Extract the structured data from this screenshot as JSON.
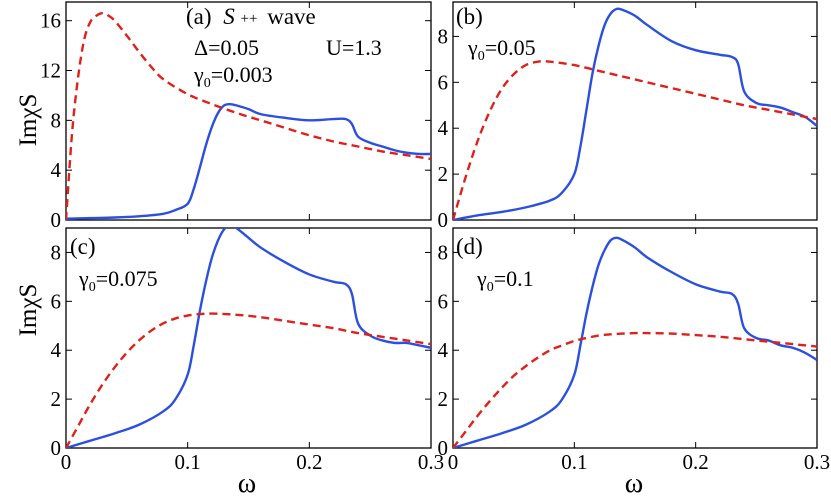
{
  "figure": {
    "ylabel": "ImχS",
    "xlabel": "ω",
    "colors": {
      "blue": "#2b4fe0",
      "red": "#e0201b"
    }
  },
  "chart_data": [
    {
      "type": "line",
      "panel": "a",
      "panel_label": "(a)",
      "wave_symbol": "S",
      "wave_superscript": "++",
      "wave_word": "wave",
      "params": [
        {
          "id": "delta",
          "text": "Δ=0.05"
        },
        {
          "id": "u",
          "text": "U=1.3"
        },
        {
          "id": "gamma",
          "text": "γ0=0.003",
          "symbol": "γ",
          "sub": "0",
          "value": "=0.003"
        }
      ],
      "xlim": [
        0,
        0.3
      ],
      "ylim": [
        0,
        17.5
      ],
      "xticks": [
        0,
        0.1,
        0.2,
        0.3
      ],
      "xtick_labels": [
        "0",
        "0.1",
        "0.2",
        "0.3"
      ],
      "yticks": [
        0,
        4,
        8,
        12,
        16
      ],
      "series": [
        {
          "name": "blue",
          "style": "solid",
          "color": "#2b4fe0",
          "x": [
            0,
            0.02,
            0.04,
            0.06,
            0.08,
            0.09,
            0.1,
            0.105,
            0.11,
            0.115,
            0.12,
            0.125,
            0.13,
            0.135,
            0.14,
            0.15,
            0.16,
            0.18,
            0.2,
            0.22,
            0.23,
            0.235,
            0.24,
            0.25,
            0.26,
            0.27,
            0.28,
            0.29,
            0.3
          ],
          "y": [
            0.1,
            0.15,
            0.2,
            0.3,
            0.5,
            0.8,
            1.3,
            2.5,
            4.2,
            6.0,
            7.5,
            8.6,
            9.2,
            9.3,
            9.2,
            8.9,
            8.5,
            8.2,
            8.0,
            8.1,
            8.1,
            7.7,
            6.7,
            6.2,
            5.9,
            5.6,
            5.4,
            5.3,
            5.3
          ]
        },
        {
          "name": "red",
          "style": "dashed",
          "color": "#e0201b",
          "x": [
            0,
            0.005,
            0.01,
            0.015,
            0.02,
            0.025,
            0.03,
            0.035,
            0.04,
            0.05,
            0.06,
            0.07,
            0.08,
            0.1,
            0.12,
            0.14,
            0.16,
            0.18,
            0.2,
            0.22,
            0.24,
            0.26,
            0.28,
            0.3
          ],
          "y": [
            0,
            7.0,
            11.5,
            14.5,
            15.9,
            16.4,
            16.6,
            16.4,
            16.0,
            14.8,
            13.5,
            12.3,
            11.3,
            10.1,
            9.3,
            8.6,
            8.0,
            7.4,
            6.8,
            6.3,
            5.9,
            5.5,
            5.2,
            4.9
          ]
        }
      ]
    },
    {
      "type": "line",
      "panel": "b",
      "panel_label": "(b)",
      "params": [
        {
          "id": "gamma",
          "text": "γ0=0.05",
          "symbol": "γ",
          "sub": "0",
          "value": "=0.05"
        }
      ],
      "xlim": [
        0,
        0.3
      ],
      "ylim": [
        0,
        9.5
      ],
      "xticks": [
        0,
        0.1,
        0.2,
        0.3
      ],
      "xtick_labels": [
        "0",
        "0.1",
        "0.2",
        "0.3"
      ],
      "yticks": [
        0,
        2,
        4,
        6,
        8
      ],
      "series": [
        {
          "name": "blue",
          "style": "solid",
          "color": "#2b4fe0",
          "x": [
            0,
            0.02,
            0.04,
            0.06,
            0.08,
            0.09,
            0.1,
            0.105,
            0.11,
            0.115,
            0.12,
            0.125,
            0.13,
            0.135,
            0.14,
            0.15,
            0.16,
            0.18,
            0.2,
            0.22,
            0.23,
            0.235,
            0.24,
            0.25,
            0.26,
            0.27,
            0.28,
            0.29,
            0.3
          ],
          "y": [
            0,
            0.2,
            0.35,
            0.55,
            0.85,
            1.2,
            2.0,
            3.2,
            4.8,
            6.4,
            7.6,
            8.5,
            9.0,
            9.2,
            9.15,
            8.9,
            8.5,
            7.8,
            7.4,
            7.2,
            7.1,
            6.8,
            5.6,
            5.1,
            5.0,
            4.9,
            4.7,
            4.5,
            4.1
          ]
        },
        {
          "name": "red",
          "style": "dashed",
          "color": "#e0201b",
          "x": [
            0,
            0.01,
            0.02,
            0.03,
            0.04,
            0.05,
            0.06,
            0.07,
            0.08,
            0.1,
            0.12,
            0.14,
            0.16,
            0.18,
            0.2,
            0.22,
            0.24,
            0.26,
            0.28,
            0.3
          ],
          "y": [
            0,
            1.8,
            3.4,
            4.7,
            5.7,
            6.35,
            6.75,
            6.9,
            6.9,
            6.75,
            6.5,
            6.25,
            6.0,
            5.75,
            5.5,
            5.25,
            5.0,
            4.8,
            4.6,
            4.4
          ]
        }
      ]
    },
    {
      "type": "line",
      "panel": "c",
      "panel_label": "(c)",
      "params": [
        {
          "id": "gamma",
          "text": "γ0=0.075",
          "symbol": "γ",
          "sub": "0",
          "value": "=0.075"
        }
      ],
      "xlim": [
        0,
        0.3
      ],
      "ylim": [
        0,
        9.0
      ],
      "xticks": [
        0,
        0.1,
        0.2,
        0.3
      ],
      "xtick_labels": [
        "0",
        "0.1",
        "0.2",
        "0.3"
      ],
      "yticks": [
        0,
        2,
        4,
        6,
        8
      ],
      "series": [
        {
          "name": "blue",
          "style": "solid",
          "color": "#2b4fe0",
          "x": [
            0,
            0.02,
            0.04,
            0.06,
            0.08,
            0.09,
            0.1,
            0.105,
            0.11,
            0.115,
            0.12,
            0.125,
            0.13,
            0.135,
            0.14,
            0.15,
            0.16,
            0.18,
            0.2,
            0.22,
            0.23,
            0.235,
            0.24,
            0.25,
            0.26,
            0.27,
            0.28,
            0.29,
            0.3
          ],
          "y": [
            0,
            0.3,
            0.6,
            0.95,
            1.5,
            2.0,
            3.0,
            4.2,
            5.6,
            6.8,
            7.8,
            8.5,
            8.95,
            9.1,
            9.0,
            8.6,
            8.2,
            7.6,
            7.1,
            6.8,
            6.7,
            6.3,
            5.1,
            4.6,
            4.4,
            4.3,
            4.3,
            4.2,
            4.1
          ]
        },
        {
          "name": "red",
          "style": "dashed",
          "color": "#e0201b",
          "x": [
            0,
            0.01,
            0.02,
            0.03,
            0.04,
            0.05,
            0.06,
            0.07,
            0.08,
            0.09,
            0.1,
            0.11,
            0.12,
            0.14,
            0.16,
            0.18,
            0.2,
            0.22,
            0.24,
            0.26,
            0.28,
            0.3
          ],
          "y": [
            0,
            0.9,
            1.8,
            2.6,
            3.3,
            3.9,
            4.4,
            4.8,
            5.1,
            5.3,
            5.42,
            5.48,
            5.5,
            5.45,
            5.35,
            5.2,
            5.05,
            4.9,
            4.7,
            4.55,
            4.4,
            4.25
          ]
        }
      ]
    },
    {
      "type": "line",
      "panel": "d",
      "panel_label": "(d)",
      "params": [
        {
          "id": "gamma",
          "text": "γ0=0.1",
          "symbol": "γ",
          "sub": "0",
          "value": "=0.1"
        }
      ],
      "xlim": [
        0,
        0.3
      ],
      "ylim": [
        0,
        9.0
      ],
      "xticks": [
        0,
        0.1,
        0.2,
        0.3
      ],
      "xtick_labels": [
        "0",
        "0.1",
        "0.2",
        "0.3"
      ],
      "yticks": [
        0,
        2,
        4,
        6,
        8
      ],
      "series": [
        {
          "name": "blue",
          "style": "solid",
          "color": "#2b4fe0",
          "x": [
            0,
            0.02,
            0.04,
            0.06,
            0.08,
            0.09,
            0.1,
            0.105,
            0.11,
            0.115,
            0.12,
            0.125,
            0.13,
            0.135,
            0.14,
            0.15,
            0.16,
            0.18,
            0.2,
            0.22,
            0.23,
            0.235,
            0.24,
            0.25,
            0.26,
            0.27,
            0.28,
            0.29,
            0.3
          ],
          "y": [
            0,
            0.3,
            0.6,
            0.95,
            1.5,
            2.0,
            3.0,
            4.2,
            5.5,
            6.6,
            7.5,
            8.1,
            8.5,
            8.6,
            8.5,
            8.2,
            7.8,
            7.2,
            6.7,
            6.4,
            6.3,
            5.9,
            4.9,
            4.5,
            4.4,
            4.2,
            4.1,
            3.9,
            3.6
          ]
        },
        {
          "name": "red",
          "style": "dashed",
          "color": "#e0201b",
          "x": [
            0,
            0.01,
            0.02,
            0.03,
            0.04,
            0.05,
            0.06,
            0.07,
            0.08,
            0.09,
            0.1,
            0.11,
            0.12,
            0.13,
            0.14,
            0.15,
            0.16,
            0.18,
            0.2,
            0.22,
            0.24,
            0.26,
            0.28,
            0.3
          ],
          "y": [
            0,
            0.65,
            1.3,
            1.9,
            2.45,
            2.95,
            3.35,
            3.7,
            4.0,
            4.2,
            4.38,
            4.5,
            4.6,
            4.65,
            4.68,
            4.7,
            4.7,
            4.68,
            4.62,
            4.55,
            4.45,
            4.35,
            4.25,
            4.15
          ]
        }
      ]
    }
  ]
}
